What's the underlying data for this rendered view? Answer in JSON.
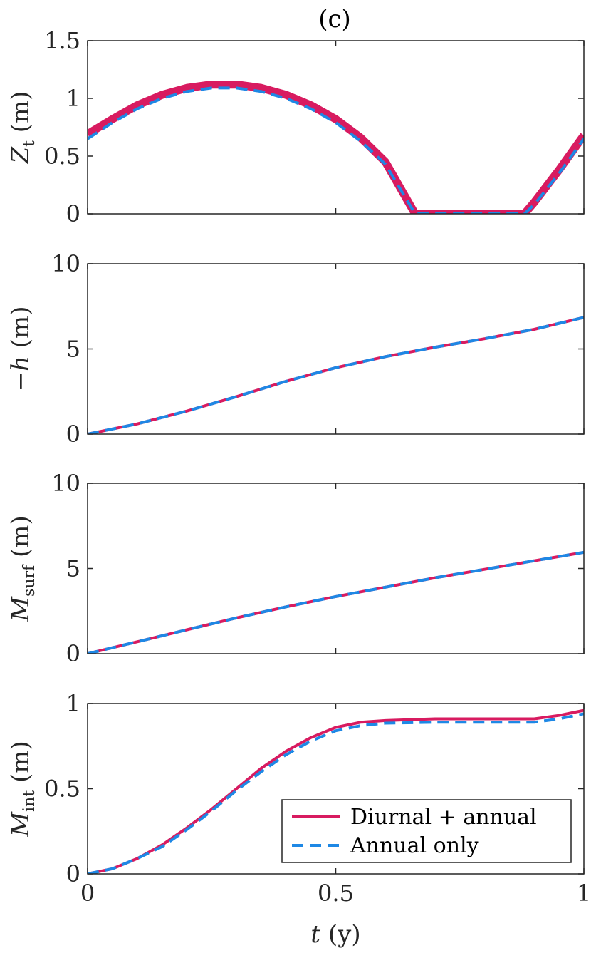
{
  "figure": {
    "title": "(c)"
  },
  "xaxis": {
    "label_var": "t",
    "label_unit": " (y)",
    "ticks": [
      "0",
      "0.5",
      "1"
    ],
    "xlim": [
      0,
      1
    ]
  },
  "legend": {
    "placement": "bottom-right of last panel",
    "entries": [
      {
        "label": "Diurnal + annual",
        "color": "#d81b60",
        "style": "solid"
      },
      {
        "label": "Annual only",
        "color": "#1e88e5",
        "style": "dashed"
      }
    ]
  },
  "colors": {
    "diurnal": "#d81b60",
    "annual": "#1e88e5"
  },
  "chart_data": [
    {
      "type": "line",
      "id": "zt",
      "ylabel": {
        "var": "Z",
        "sub": "t",
        "unit": " (m)"
      },
      "ylim": [
        0,
        1.5
      ],
      "yticks": [
        "0",
        "0.5",
        "1",
        "1.5"
      ],
      "series": [
        {
          "name": "Diurnal + annual",
          "band_width": 0.07,
          "x": [
            0,
            0.05,
            0.1,
            0.15,
            0.2,
            0.25,
            0.3,
            0.35,
            0.4,
            0.45,
            0.5,
            0.55,
            0.6,
            0.66,
            0.7,
            0.8,
            0.88,
            0.9,
            0.95,
            1.0
          ],
          "y": [
            0.69,
            0.82,
            0.94,
            1.03,
            1.09,
            1.12,
            1.12,
            1.09,
            1.03,
            0.94,
            0.82,
            0.66,
            0.45,
            0.0,
            0.0,
            0.0,
            0.0,
            0.1,
            0.38,
            0.68
          ]
        },
        {
          "name": "Annual only",
          "x": [
            0,
            0.05,
            0.1,
            0.15,
            0.2,
            0.25,
            0.3,
            0.35,
            0.4,
            0.45,
            0.5,
            0.55,
            0.6,
            0.66,
            0.7,
            0.8,
            0.88,
            0.9,
            0.95,
            1.0
          ],
          "y": [
            0.65,
            0.79,
            0.91,
            1.0,
            1.06,
            1.09,
            1.09,
            1.06,
            1.0,
            0.91,
            0.79,
            0.63,
            0.43,
            0.0,
            0.0,
            0.0,
            0.0,
            0.08,
            0.35,
            0.65
          ]
        }
      ]
    },
    {
      "type": "line",
      "id": "h",
      "ylabel": {
        "var": "−h",
        "sub": "",
        "unit": " (m)"
      },
      "ylim": [
        0,
        10
      ],
      "yticks": [
        "0",
        "5",
        "10"
      ],
      "series": [
        {
          "name": "Diurnal + annual",
          "x": [
            0,
            0.1,
            0.2,
            0.3,
            0.4,
            0.5,
            0.6,
            0.7,
            0.8,
            0.9,
            1.0
          ],
          "y": [
            0,
            0.6,
            1.35,
            2.2,
            3.1,
            3.9,
            4.55,
            5.1,
            5.6,
            6.15,
            6.85
          ]
        },
        {
          "name": "Annual only",
          "x": [
            0,
            0.1,
            0.2,
            0.3,
            0.4,
            0.5,
            0.6,
            0.7,
            0.8,
            0.9,
            1.0
          ],
          "y": [
            0,
            0.6,
            1.35,
            2.2,
            3.1,
            3.9,
            4.55,
            5.1,
            5.6,
            6.15,
            6.85
          ]
        }
      ]
    },
    {
      "type": "line",
      "id": "msurf",
      "ylabel": {
        "var": "M",
        "sub": "surf",
        "unit": " (m)"
      },
      "ylim": [
        0,
        10
      ],
      "yticks": [
        "0",
        "5",
        "10"
      ],
      "series": [
        {
          "name": "Diurnal + annual",
          "x": [
            0,
            0.1,
            0.2,
            0.3,
            0.4,
            0.5,
            0.6,
            0.7,
            0.8,
            0.9,
            1.0
          ],
          "y": [
            0,
            0.7,
            1.4,
            2.1,
            2.75,
            3.35,
            3.9,
            4.45,
            4.95,
            5.45,
            5.95
          ]
        },
        {
          "name": "Annual only",
          "x": [
            0,
            0.1,
            0.2,
            0.3,
            0.4,
            0.5,
            0.6,
            0.7,
            0.8,
            0.9,
            1.0
          ],
          "y": [
            0,
            0.7,
            1.4,
            2.1,
            2.75,
            3.35,
            3.9,
            4.45,
            4.95,
            5.45,
            5.95
          ]
        }
      ]
    },
    {
      "type": "line",
      "id": "mint",
      "ylabel": {
        "var": "M",
        "sub": "int",
        "unit": " (m)"
      },
      "ylim": [
        0,
        1
      ],
      "yticks": [
        "0",
        "0.5",
        "1"
      ],
      "series": [
        {
          "name": "Diurnal + annual",
          "x": [
            0,
            0.05,
            0.1,
            0.15,
            0.2,
            0.25,
            0.3,
            0.35,
            0.4,
            0.45,
            0.5,
            0.55,
            0.6,
            0.7,
            0.8,
            0.85,
            0.9,
            0.95,
            1.0
          ],
          "y": [
            0,
            0.03,
            0.09,
            0.17,
            0.27,
            0.38,
            0.5,
            0.62,
            0.72,
            0.8,
            0.86,
            0.89,
            0.9,
            0.91,
            0.91,
            0.91,
            0.91,
            0.93,
            0.96
          ]
        },
        {
          "name": "Annual only",
          "x": [
            0,
            0.05,
            0.1,
            0.15,
            0.2,
            0.25,
            0.3,
            0.35,
            0.4,
            0.45,
            0.5,
            0.55,
            0.6,
            0.7,
            0.8,
            0.85,
            0.9,
            0.95,
            1.0
          ],
          "y": [
            0,
            0.03,
            0.09,
            0.16,
            0.26,
            0.37,
            0.49,
            0.6,
            0.7,
            0.78,
            0.84,
            0.87,
            0.885,
            0.89,
            0.89,
            0.89,
            0.89,
            0.91,
            0.94
          ]
        }
      ]
    }
  ]
}
